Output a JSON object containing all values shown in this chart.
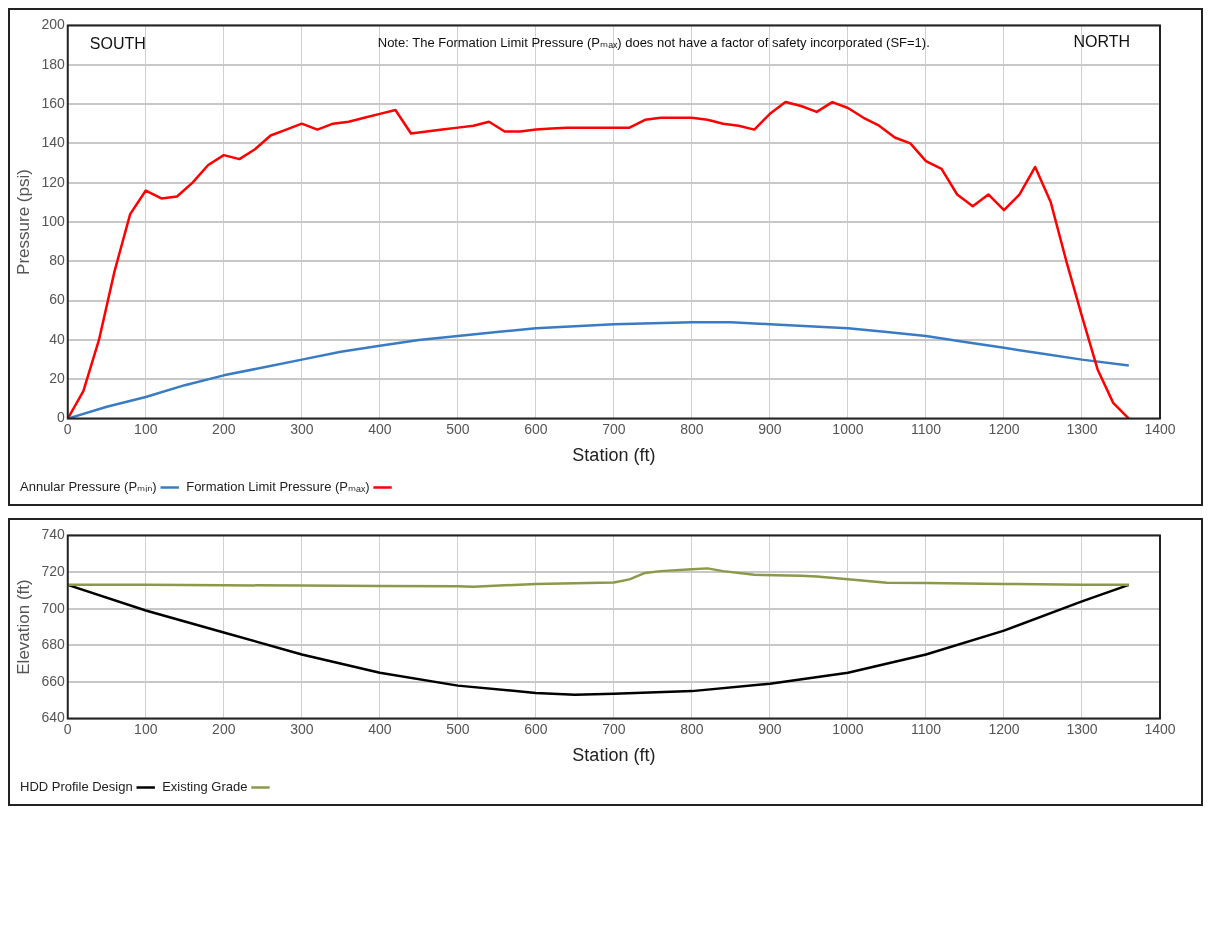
{
  "chart_data": [
    {
      "type": "line",
      "xlabel": "Station (ft)",
      "ylabel": "Pressure (psi)",
      "xlim": [
        0,
        1400
      ],
      "xticks": [
        0,
        100,
        200,
        300,
        400,
        500,
        600,
        700,
        800,
        900,
        1000,
        1100,
        1200,
        1300,
        1400
      ],
      "ylim": [
        0,
        200
      ],
      "yticks": [
        0,
        20,
        40,
        60,
        80,
        100,
        120,
        140,
        160,
        180,
        200
      ],
      "grid": true,
      "legend": "bottom left",
      "marker": "none",
      "line_style": "solid",
      "annotations": [
        "SOUTH",
        "Note: The Formation Limit Pressure (Pₘₐₓ) does not have a factor of safety incorporated (SF=1).",
        "NORTH"
      ],
      "series": [
        {
          "name": "Formation Limit Pressure (Pₘₐₓ)",
          "color": "#ff0000",
          "x": [
            0,
            20,
            40,
            60,
            80,
            100,
            120,
            140,
            160,
            180,
            200,
            220,
            240,
            260,
            280,
            300,
            320,
            340,
            360,
            380,
            400,
            420,
            440,
            460,
            480,
            500,
            520,
            540,
            560,
            580,
            600,
            620,
            640,
            660,
            680,
            700,
            720,
            740,
            760,
            780,
            800,
            820,
            840,
            860,
            880,
            900,
            920,
            940,
            960,
            980,
            1000,
            1020,
            1040,
            1060,
            1080,
            1100,
            1120,
            1140,
            1160,
            1180,
            1200,
            1220,
            1240,
            1260,
            1280,
            1300,
            1320,
            1340,
            1360
          ],
          "values": [
            0,
            14,
            40,
            75,
            104,
            116,
            112,
            113,
            120,
            129,
            134,
            132,
            137,
            144,
            147,
            150,
            147,
            150,
            151,
            153,
            155,
            157,
            145,
            146,
            147,
            148,
            149,
            151,
            146,
            146,
            147,
            147.5,
            148,
            148,
            148,
            148,
            148,
            152,
            153,
            153,
            153,
            152,
            150,
            149,
            147,
            155,
            161,
            159,
            156,
            161,
            158,
            153,
            149,
            143,
            140,
            131,
            127,
            114,
            108,
            114,
            106,
            114,
            128,
            110,
            80,
            52,
            25,
            8,
            0
          ]
        },
        {
          "name": "Annular Pressure (Pₘᵢₙ)",
          "color": "#3a7cc4",
          "x": [
            0,
            50,
            100,
            150,
            200,
            250,
            300,
            350,
            400,
            450,
            500,
            550,
            600,
            650,
            700,
            750,
            800,
            850,
            900,
            950,
            1000,
            1050,
            1100,
            1150,
            1200,
            1250,
            1300,
            1360
          ],
          "values": [
            0,
            6,
            11,
            17,
            22,
            26,
            30,
            34,
            37,
            40,
            42,
            44,
            46,
            47,
            48,
            48.5,
            49,
            49,
            48,
            47,
            46,
            44,
            42,
            39,
            36,
            33,
            30,
            27
          ]
        }
      ]
    },
    {
      "type": "line",
      "xlabel": "Station (ft)",
      "ylabel": "Elevation (ft)",
      "xlim": [
        0,
        1400
      ],
      "xticks": [
        0,
        100,
        200,
        300,
        400,
        500,
        600,
        700,
        800,
        900,
        1000,
        1100,
        1200,
        1300,
        1400
      ],
      "ylim": [
        640,
        740
      ],
      "yticks": [
        640,
        660,
        680,
        700,
        720,
        740
      ],
      "grid": true,
      "legend": "bottom left",
      "marker": "none",
      "line_style": "solid",
      "series": [
        {
          "name": "Existing Grade",
          "color": "#8a9a4a",
          "x": [
            0,
            100,
            200,
            300,
            400,
            500,
            520,
            600,
            700,
            720,
            740,
            760,
            800,
            820,
            840,
            880,
            940,
            960,
            1000,
            1050,
            1100,
            1200,
            1300,
            1360
          ],
          "values": [
            713,
            713,
            712.8,
            712.6,
            712.4,
            712.3,
            712,
            713.5,
            714.3,
            716,
            719.5,
            720.5,
            721.5,
            722,
            720.5,
            718.5,
            718,
            717.5,
            716,
            714.2,
            714,
            713.5,
            713,
            713
          ]
        },
        {
          "name": "HDD Profile Design",
          "color": "#000000",
          "x": [
            0,
            100,
            200,
            300,
            400,
            500,
            600,
            650,
            700,
            800,
            900,
            1000,
            1100,
            1200,
            1300,
            1360
          ],
          "values": [
            713,
            699,
            687,
            675,
            665,
            658,
            654,
            653,
            653.5,
            655,
            659,
            665,
            675,
            688,
            704,
            713
          ]
        }
      ]
    }
  ]
}
